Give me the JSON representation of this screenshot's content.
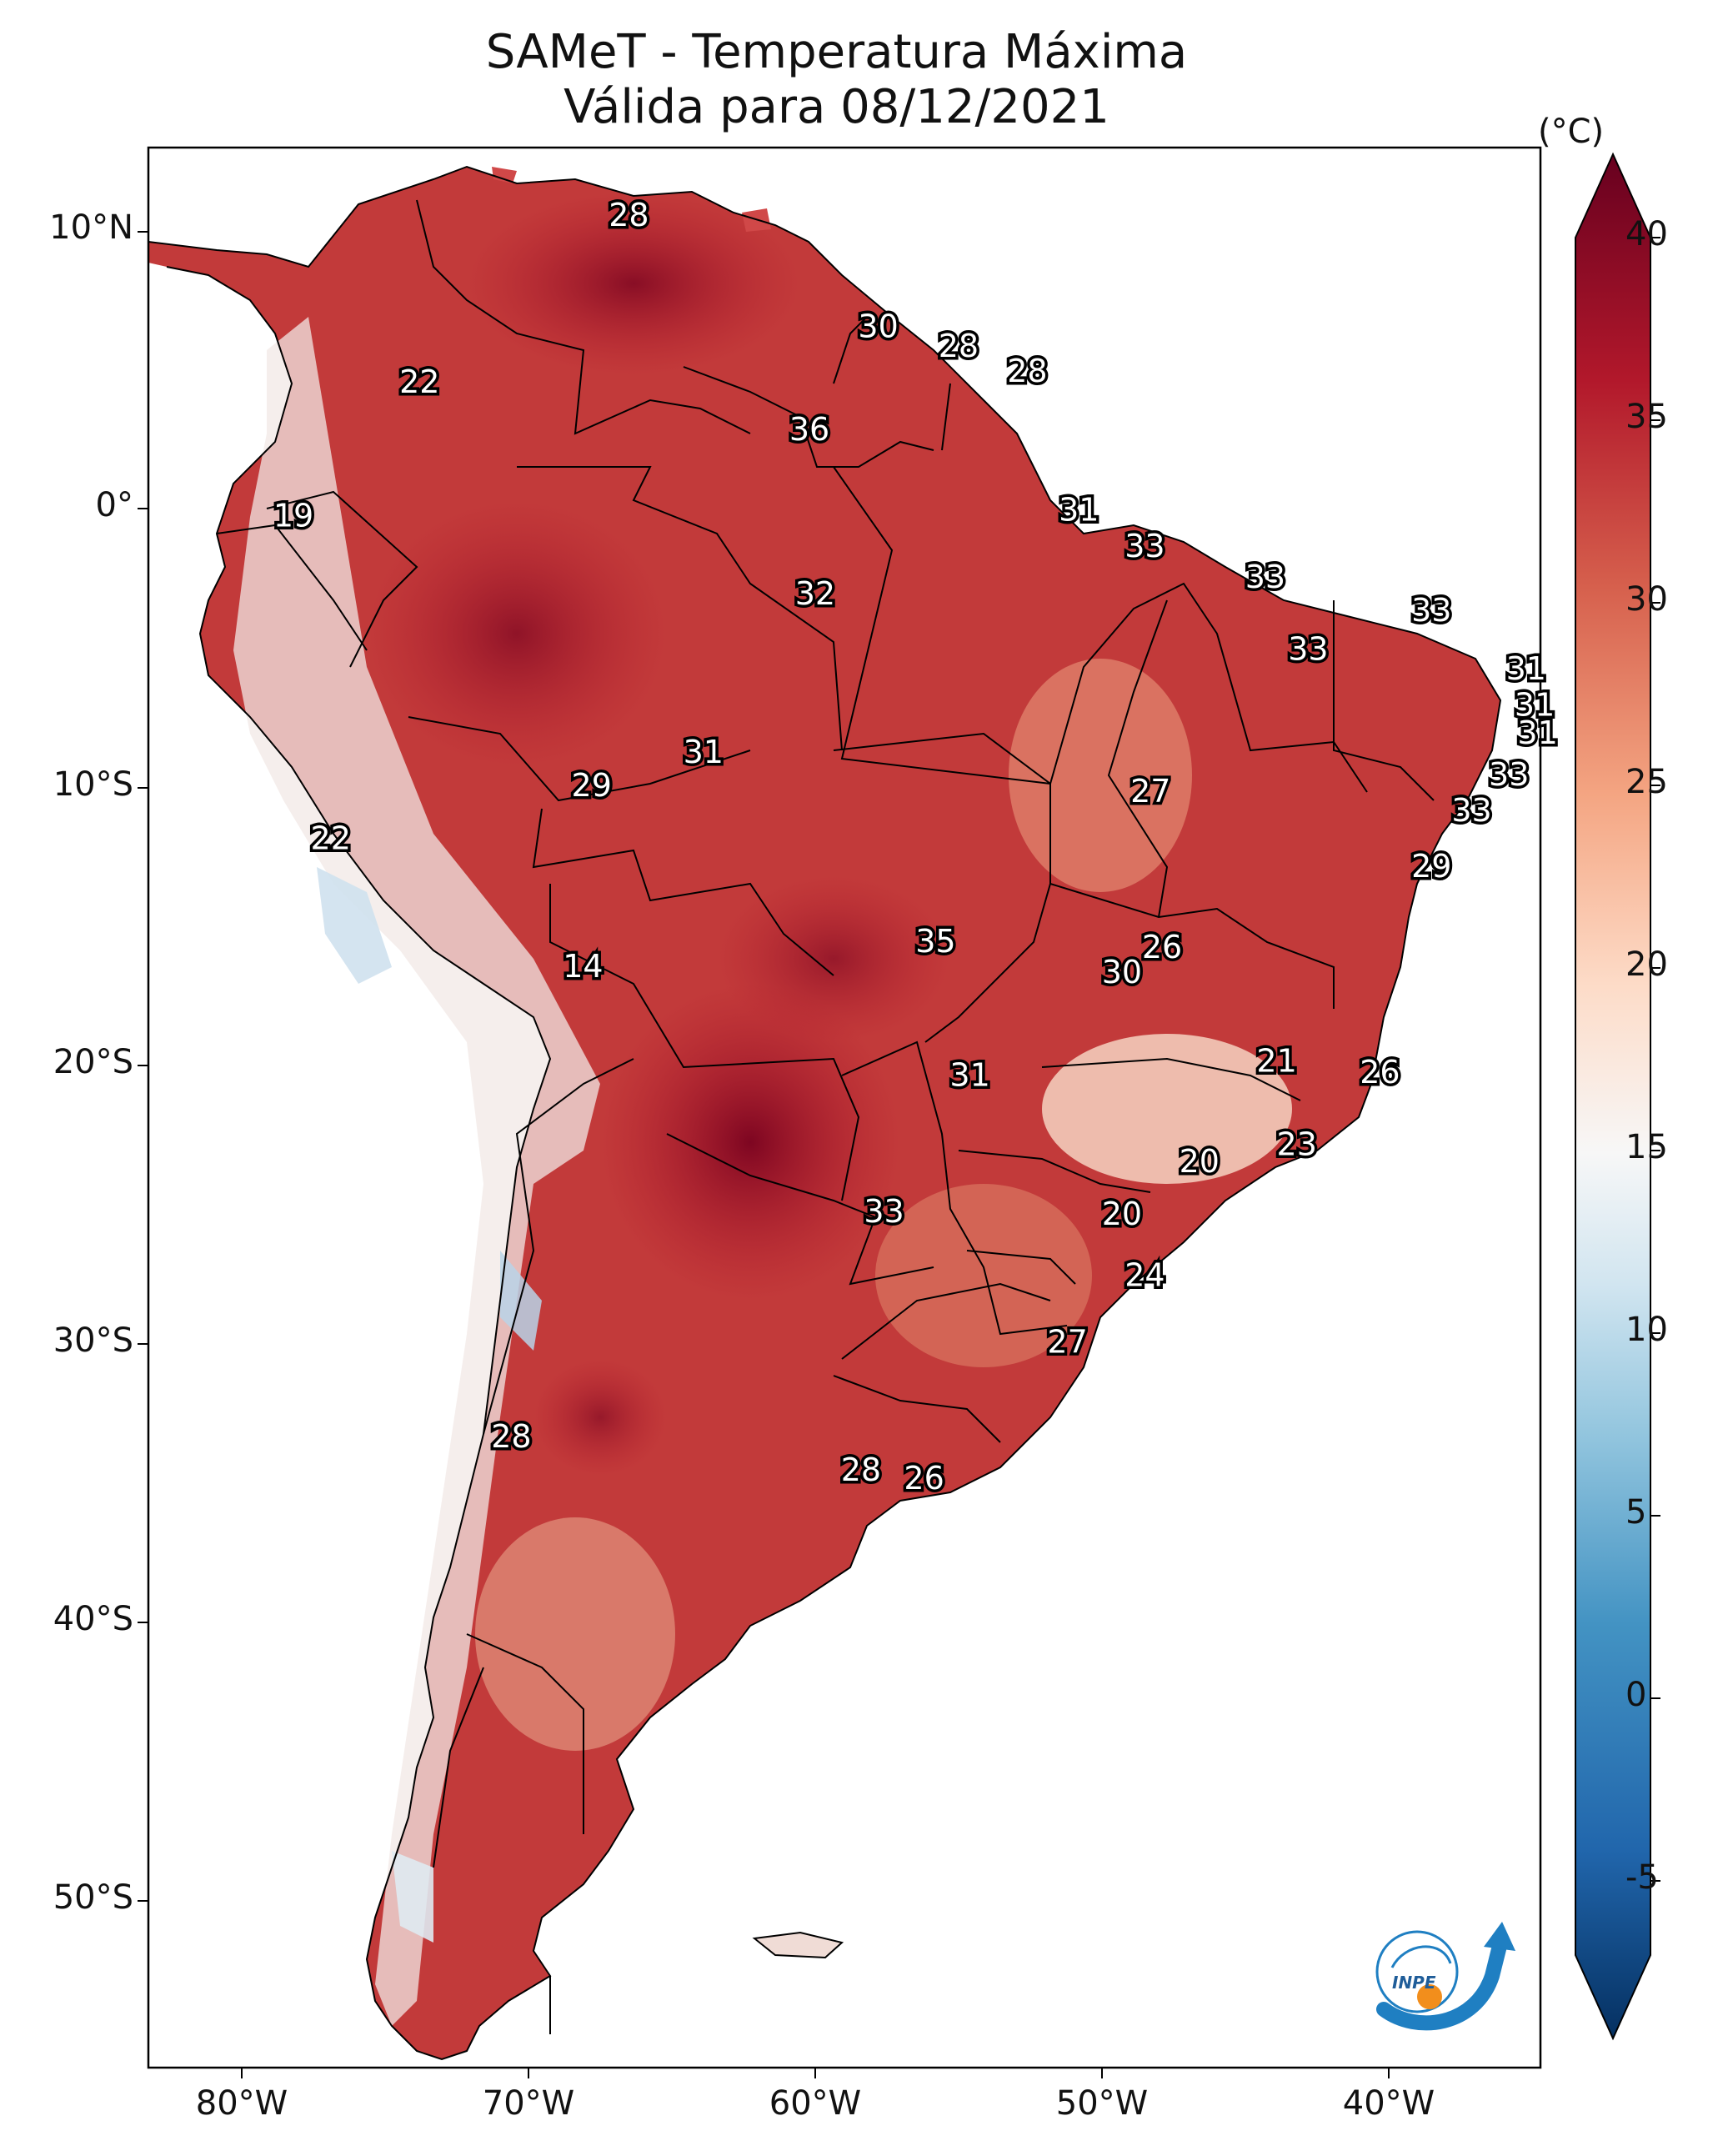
{
  "title": {
    "line1": "SAMeT - Temperatura Máxima",
    "line2": "Válida para 08/12/2021"
  },
  "axes": {
    "lat_labels": [
      "10°N",
      "0°",
      "10°S",
      "20°S",
      "30°S",
      "40°S",
      "50°S"
    ],
    "lon_labels": [
      "80°W",
      "70°W",
      "60°W",
      "50°W",
      "40°W"
    ]
  },
  "colorbar": {
    "unit": "(°C)",
    "ticks": [
      "40",
      "35",
      "30",
      "25",
      "20",
      "15",
      "10",
      "5",
      "0",
      "-5"
    ],
    "min": -7,
    "max": 40,
    "colors": [
      "#053061",
      "#2166ac",
      "#4393c3",
      "#92c5de",
      "#d1e5f0",
      "#f7f7f7",
      "#fddbc7",
      "#f4a582",
      "#d6604d",
      "#b2182b",
      "#67001f"
    ]
  },
  "logo": {
    "text": "INPE",
    "accent": "#f28e1c",
    "primary": "#1f7fc2"
  },
  "station_values": [
    {
      "v": "28",
      "lon": -66.5,
      "lat": 10.5
    },
    {
      "v": "30",
      "lon": -57.8,
      "lat": 6.5
    },
    {
      "v": "28",
      "lon": -55.0,
      "lat": 5.8
    },
    {
      "v": "28",
      "lon": -52.6,
      "lat": 4.9
    },
    {
      "v": "22",
      "lon": -73.8,
      "lat": 4.5
    },
    {
      "v": "36",
      "lon": -60.2,
      "lat": 2.8
    },
    {
      "v": "19",
      "lon": -78.2,
      "lat": -0.3
    },
    {
      "v": "31",
      "lon": -50.8,
      "lat": -0.1
    },
    {
      "v": "33",
      "lon": -48.5,
      "lat": -1.4
    },
    {
      "v": "33",
      "lon": -44.3,
      "lat": -2.5
    },
    {
      "v": "32",
      "lon": -60.0,
      "lat": -3.1
    },
    {
      "v": "33",
      "lon": -38.5,
      "lat": -3.7
    },
    {
      "v": "33",
      "lon": -42.8,
      "lat": -5.1
    },
    {
      "v": "31",
      "lon": -35.2,
      "lat": -5.8
    },
    {
      "v": "31",
      "lon": -34.9,
      "lat": -7.1
    },
    {
      "v": "31",
      "lon": -34.8,
      "lat": -8.1
    },
    {
      "v": "31",
      "lon": -63.9,
      "lat": -8.8
    },
    {
      "v": "33",
      "lon": -35.8,
      "lat": -9.6
    },
    {
      "v": "29",
      "lon": -67.8,
      "lat": -10.0
    },
    {
      "v": "27",
      "lon": -48.3,
      "lat": -10.2
    },
    {
      "v": "33",
      "lon": -37.1,
      "lat": -10.9
    },
    {
      "v": "22",
      "lon": -76.9,
      "lat": -11.9
    },
    {
      "v": "29",
      "lon": -38.5,
      "lat": -12.9
    },
    {
      "v": "35",
      "lon": -55.8,
      "lat": -15.6
    },
    {
      "v": "26",
      "lon": -47.9,
      "lat": -15.8
    },
    {
      "v": "14",
      "lon": -68.1,
      "lat": -16.5
    },
    {
      "v": "30",
      "lon": -49.3,
      "lat": -16.7
    },
    {
      "v": "21",
      "lon": -43.9,
      "lat": -19.9
    },
    {
      "v": "26",
      "lon": -40.3,
      "lat": -20.3
    },
    {
      "v": "31",
      "lon": -54.6,
      "lat": -20.4
    },
    {
      "v": "23",
      "lon": -43.2,
      "lat": -22.9
    },
    {
      "v": "20",
      "lon": -46.6,
      "lat": -23.5
    },
    {
      "v": "33",
      "lon": -57.6,
      "lat": -25.3
    },
    {
      "v": "20",
      "lon": -49.3,
      "lat": -25.4
    },
    {
      "v": "24",
      "lon": -48.5,
      "lat": -27.6
    },
    {
      "v": "27",
      "lon": -51.2,
      "lat": -30.0
    },
    {
      "v": "28",
      "lon": -70.6,
      "lat": -33.4
    },
    {
      "v": "28",
      "lon": -58.4,
      "lat": -34.6
    },
    {
      "v": "26",
      "lon": -56.2,
      "lat": -34.9
    }
  ]
}
